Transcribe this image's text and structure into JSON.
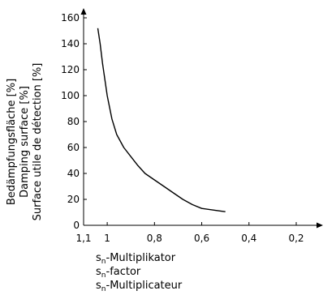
{
  "chart_data": {
    "type": "line",
    "title": "",
    "ylabel_lines": [
      "Bedämpfungsfläche [%]",
      "Damping surface [%]",
      "Surface utile de détection [%]"
    ],
    "xlabel_lines": [
      {
        "pre": "s",
        "sub": "n",
        "post": "-Multiplikator"
      },
      {
        "pre": "s",
        "sub": "n",
        "post": "-factor"
      },
      {
        "pre": "s",
        "sub": "n",
        "post": "-Multiplicateur"
      }
    ],
    "x_ticks": [
      {
        "value": 1.1,
        "label": "1,1"
      },
      {
        "value": 1.0,
        "label": "1"
      },
      {
        "value": 0.8,
        "label": "0,8"
      },
      {
        "value": 0.6,
        "label": "0,6"
      },
      {
        "value": 0.4,
        "label": "0,4"
      },
      {
        "value": 0.2,
        "label": "0,2"
      }
    ],
    "y_ticks": [
      {
        "value": 0,
        "label": "0"
      },
      {
        "value": 20,
        "label": "20"
      },
      {
        "value": 40,
        "label": "40"
      },
      {
        "value": 60,
        "label": "60"
      },
      {
        "value": 80,
        "label": "80"
      },
      {
        "value": 100,
        "label": "100"
      },
      {
        "value": 120,
        "label": "120"
      },
      {
        "value": 140,
        "label": "140"
      },
      {
        "value": 160,
        "label": "160"
      }
    ],
    "xlim": [
      1.1,
      0.2
    ],
    "x_reversed": true,
    "ylim": [
      0,
      160
    ],
    "grid": false,
    "series": [
      {
        "x": [
          1.04,
          1.03,
          1.02,
          1.0,
          0.98,
          0.96,
          0.93,
          0.9,
          0.87,
          0.84,
          0.8,
          0.76,
          0.72,
          0.68,
          0.64,
          0.6,
          0.56,
          0.52,
          0.5
        ],
        "y": [
          152,
          140,
          125,
          100,
          82,
          70,
          60,
          53,
          46,
          40,
          35,
          30,
          25,
          20,
          16,
          13,
          12,
          11,
          10.5
        ]
      }
    ]
  }
}
